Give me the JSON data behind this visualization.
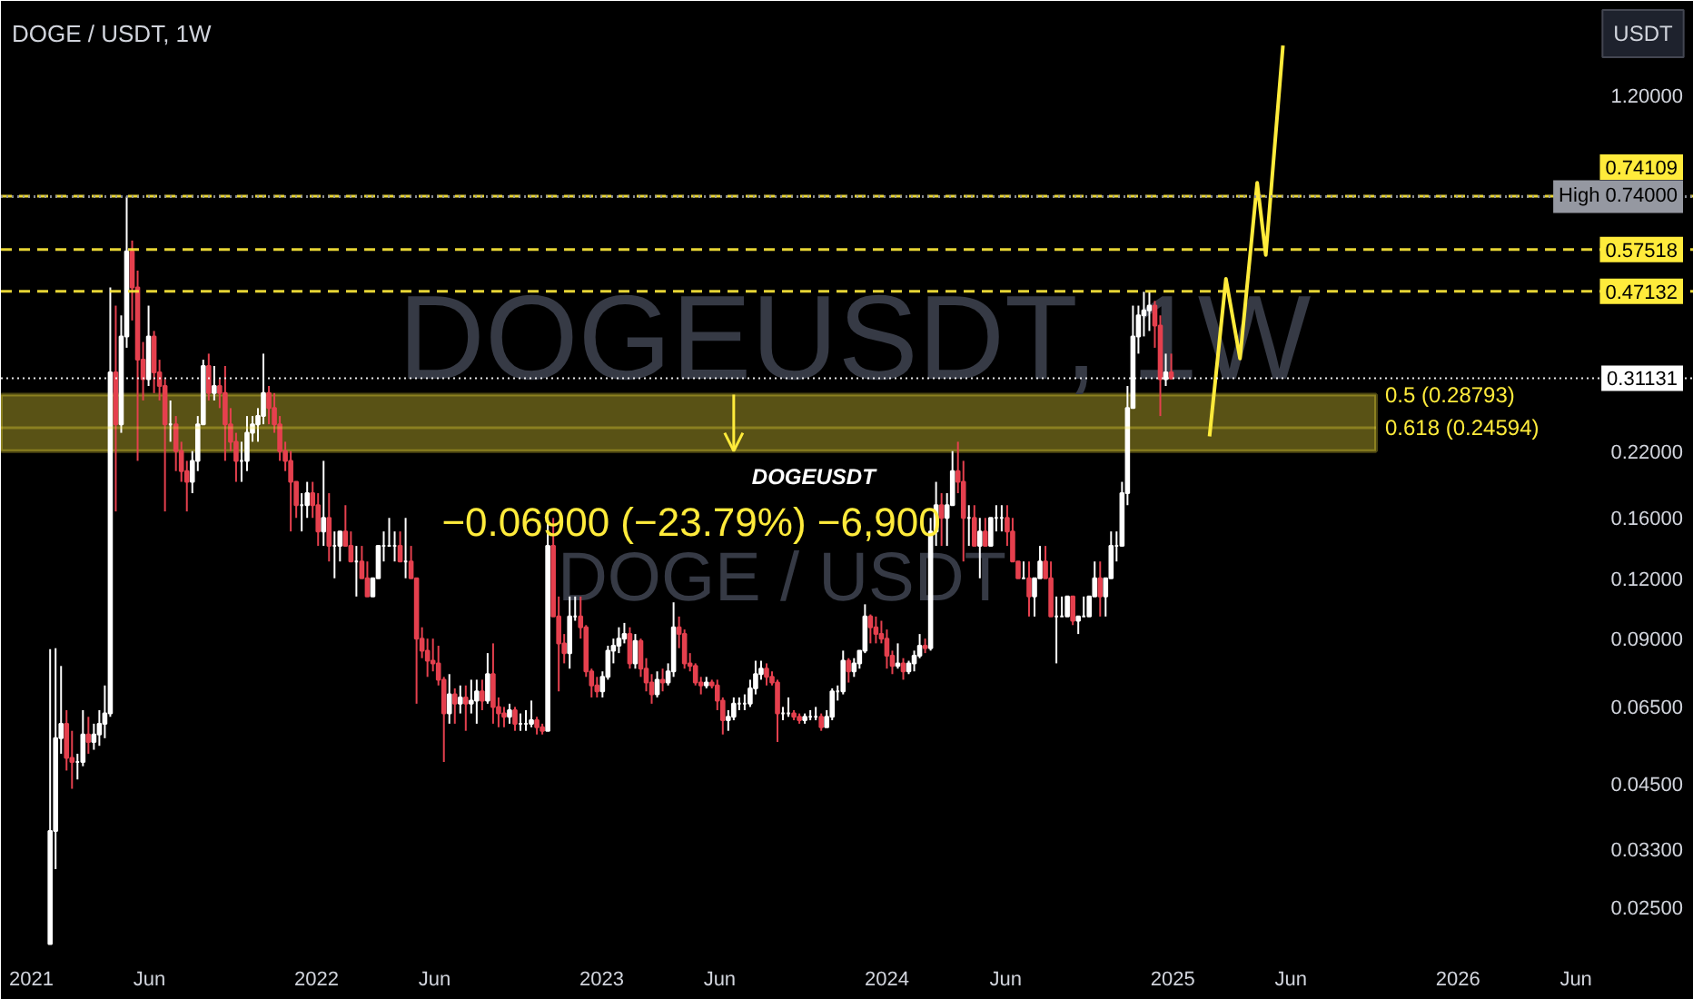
{
  "chart_data": {
    "type": "candlestick",
    "title": "DOGE / USDT, 1W",
    "ylabel": "USDT",
    "log": "y",
    "grid": false,
    "xlim": [
      "2020-11-23",
      "2026-10-30"
    ],
    "xticks": [
      {
        "value": "2021-01-01",
        "label": "2021"
      },
      {
        "value": "2021-06-01",
        "label": "Jun"
      },
      {
        "value": "2022-01-01",
        "label": "2022"
      },
      {
        "value": "2022-06-01",
        "label": "Jun"
      },
      {
        "value": "2023-01-01",
        "label": "2023"
      },
      {
        "value": "2023-06-01",
        "label": "Jun"
      },
      {
        "value": "2024-01-01",
        "label": "2024"
      },
      {
        "value": "2024-06-01",
        "label": "Jun"
      },
      {
        "value": "2025-01-01",
        "label": "2025"
      },
      {
        "value": "2025-06-01",
        "label": "Jun"
      },
      {
        "value": "2026-01-01",
        "label": "2026"
      },
      {
        "value": "2026-06-01",
        "label": "Jun"
      }
    ],
    "ylim": [
      0.0205,
      1.88
    ],
    "yticks": [
      {
        "value": 1.2,
        "label": "1.20000"
      },
      {
        "value": 0.22,
        "label": "0.22000"
      },
      {
        "value": 0.16,
        "label": "0.16000"
      },
      {
        "value": 0.12,
        "label": "0.12000"
      },
      {
        "value": 0.09,
        "label": "0.09000"
      },
      {
        "value": 0.065,
        "label": "0.06500"
      },
      {
        "value": 0.045,
        "label": "0.04500"
      },
      {
        "value": 0.033,
        "label": "0.03300"
      },
      {
        "value": 0.025,
        "label": "0.02500"
      }
    ],
    "x": [
      "2021-01-25",
      "2021-02-01",
      "2021-02-08",
      "2021-02-15",
      "2021-02-22",
      "2021-03-01",
      "2021-03-08",
      "2021-03-15",
      "2021-03-22",
      "2021-03-29",
      "2021-04-05",
      "2021-04-12",
      "2021-04-19",
      "2021-04-26",
      "2021-05-03",
      "2021-05-10",
      "2021-05-17",
      "2021-05-24",
      "2021-05-31",
      "2021-06-07",
      "2021-06-14",
      "2021-06-21",
      "2021-06-28",
      "2021-07-05",
      "2021-07-12",
      "2021-07-19",
      "2021-07-26",
      "2021-08-02",
      "2021-08-09",
      "2021-08-16",
      "2021-08-23",
      "2021-08-30",
      "2021-09-06",
      "2021-09-13",
      "2021-09-20",
      "2021-09-27",
      "2021-10-04",
      "2021-10-11",
      "2021-10-18",
      "2021-10-25",
      "2021-11-01",
      "2021-11-08",
      "2021-11-15",
      "2021-11-22",
      "2021-11-29",
      "2021-12-06",
      "2021-12-13",
      "2021-12-20",
      "2021-12-27",
      "2022-01-03",
      "2022-01-10",
      "2022-01-17",
      "2022-01-24",
      "2022-01-31",
      "2022-02-07",
      "2022-02-14",
      "2022-02-21",
      "2022-02-28",
      "2022-03-07",
      "2022-03-14",
      "2022-03-21",
      "2022-03-28",
      "2022-04-04",
      "2022-04-11",
      "2022-04-18",
      "2022-04-25",
      "2022-05-02",
      "2022-05-09",
      "2022-05-16",
      "2022-05-23",
      "2022-05-30",
      "2022-06-06",
      "2022-06-13",
      "2022-06-20",
      "2022-06-27",
      "2022-07-04",
      "2022-07-11",
      "2022-07-18",
      "2022-07-25",
      "2022-08-01",
      "2022-08-08",
      "2022-08-15",
      "2022-08-22",
      "2022-08-29",
      "2022-09-05",
      "2022-09-12",
      "2022-09-19",
      "2022-09-26",
      "2022-10-03",
      "2022-10-10",
      "2022-10-17",
      "2022-10-24",
      "2022-10-31",
      "2022-11-07",
      "2022-11-14",
      "2022-11-21",
      "2022-11-28",
      "2022-12-05",
      "2022-12-12",
      "2022-12-19",
      "2022-12-26",
      "2023-01-02",
      "2023-01-09",
      "2023-01-16",
      "2023-01-23",
      "2023-01-30",
      "2023-02-06",
      "2023-02-13",
      "2023-02-20",
      "2023-02-27",
      "2023-03-06",
      "2023-03-13",
      "2023-03-20",
      "2023-03-27",
      "2023-04-03",
      "2023-04-10",
      "2023-04-17",
      "2023-04-24",
      "2023-05-01",
      "2023-05-08",
      "2023-05-15",
      "2023-05-22",
      "2023-05-29",
      "2023-06-05",
      "2023-06-12",
      "2023-06-19",
      "2023-06-26",
      "2023-07-03",
      "2023-07-10",
      "2023-07-17",
      "2023-07-24",
      "2023-07-31",
      "2023-08-07",
      "2023-08-14",
      "2023-08-21",
      "2023-08-28",
      "2023-09-04",
      "2023-09-11",
      "2023-09-18",
      "2023-09-25",
      "2023-10-02",
      "2023-10-09",
      "2023-10-16",
      "2023-10-23",
      "2023-10-30",
      "2023-11-06",
      "2023-11-13",
      "2023-11-20",
      "2023-11-27",
      "2023-12-04",
      "2023-12-11",
      "2023-12-18",
      "2023-12-25",
      "2024-01-01",
      "2024-01-08",
      "2024-01-15",
      "2024-01-22",
      "2024-01-29",
      "2024-02-05",
      "2024-02-12",
      "2024-02-19",
      "2024-02-26",
      "2024-03-04",
      "2024-03-11",
      "2024-03-18",
      "2024-03-25",
      "2024-04-01",
      "2024-04-08",
      "2024-04-15",
      "2024-04-22",
      "2024-04-29",
      "2024-05-06",
      "2024-05-13",
      "2024-05-20",
      "2024-05-27",
      "2024-06-03",
      "2024-06-10",
      "2024-06-17",
      "2024-06-24",
      "2024-07-01",
      "2024-07-08",
      "2024-07-15",
      "2024-07-22",
      "2024-07-29",
      "2024-08-05",
      "2024-08-12",
      "2024-08-19",
      "2024-08-26",
      "2024-09-02",
      "2024-09-09",
      "2024-09-16",
      "2024-09-23",
      "2024-09-30",
      "2024-10-07",
      "2024-10-14",
      "2024-10-21",
      "2024-10-28",
      "2024-11-04",
      "2024-11-11",
      "2024-11-18",
      "2024-11-25",
      "2024-12-02",
      "2024-12-09",
      "2024-12-16",
      "2024-12-23",
      "2024-12-30"
    ],
    "ohlc": [
      [
        0.021,
        0.0856,
        0.021,
        0.036
      ],
      [
        0.036,
        0.086,
        0.03,
        0.056
      ],
      [
        0.056,
        0.079,
        0.052,
        0.06
      ],
      [
        0.06,
        0.064,
        0.048,
        0.051
      ],
      [
        0.051,
        0.058,
        0.044,
        0.05
      ],
      [
        0.05,
        0.052,
        0.046,
        0.05
      ],
      [
        0.05,
        0.064,
        0.049,
        0.057
      ],
      [
        0.057,
        0.062,
        0.052,
        0.055
      ],
      [
        0.055,
        0.06,
        0.053,
        0.057
      ],
      [
        0.057,
        0.064,
        0.054,
        0.06
      ],
      [
        0.06,
        0.072,
        0.056,
        0.063
      ],
      [
        0.063,
        0.48,
        0.062,
        0.32
      ],
      [
        0.32,
        0.44,
        0.165,
        0.25
      ],
      [
        0.25,
        0.42,
        0.24,
        0.38
      ],
      [
        0.38,
        0.74,
        0.36,
        0.57
      ],
      [
        0.57,
        0.6,
        0.41,
        0.48
      ],
      [
        0.48,
        0.52,
        0.21,
        0.34
      ],
      [
        0.34,
        0.37,
        0.28,
        0.31
      ],
      [
        0.31,
        0.44,
        0.3,
        0.38
      ],
      [
        0.38,
        0.39,
        0.29,
        0.32
      ],
      [
        0.32,
        0.34,
        0.28,
        0.3
      ],
      [
        0.3,
        0.31,
        0.165,
        0.25
      ],
      [
        0.25,
        0.28,
        0.23,
        0.25
      ],
      [
        0.25,
        0.26,
        0.2,
        0.22
      ],
      [
        0.22,
        0.23,
        0.19,
        0.2
      ],
      [
        0.2,
        0.21,
        0.165,
        0.19
      ],
      [
        0.19,
        0.22,
        0.18,
        0.21
      ],
      [
        0.21,
        0.26,
        0.2,
        0.25
      ],
      [
        0.25,
        0.34,
        0.25,
        0.33
      ],
      [
        0.33,
        0.35,
        0.28,
        0.29
      ],
      [
        0.29,
        0.33,
        0.28,
        0.3
      ],
      [
        0.3,
        0.31,
        0.27,
        0.29
      ],
      [
        0.29,
        0.33,
        0.21,
        0.25
      ],
      [
        0.25,
        0.27,
        0.22,
        0.23
      ],
      [
        0.23,
        0.24,
        0.19,
        0.21
      ],
      [
        0.21,
        0.23,
        0.19,
        0.21
      ],
      [
        0.21,
        0.26,
        0.2,
        0.24
      ],
      [
        0.24,
        0.26,
        0.23,
        0.25
      ],
      [
        0.25,
        0.27,
        0.23,
        0.26
      ],
      [
        0.26,
        0.35,
        0.25,
        0.29
      ],
      [
        0.29,
        0.3,
        0.25,
        0.27
      ],
      [
        0.27,
        0.29,
        0.24,
        0.25
      ],
      [
        0.25,
        0.26,
        0.21,
        0.22
      ],
      [
        0.22,
        0.23,
        0.2,
        0.21
      ],
      [
        0.21,
        0.22,
        0.15,
        0.19
      ],
      [
        0.19,
        0.19,
        0.16,
        0.17
      ],
      [
        0.17,
        0.18,
        0.15,
        0.17
      ],
      [
        0.17,
        0.19,
        0.16,
        0.18
      ],
      [
        0.18,
        0.19,
        0.16,
        0.17
      ],
      [
        0.17,
        0.18,
        0.14,
        0.15
      ],
      [
        0.15,
        0.21,
        0.14,
        0.16
      ],
      [
        0.16,
        0.18,
        0.13,
        0.14
      ],
      [
        0.14,
        0.15,
        0.12,
        0.14
      ],
      [
        0.14,
        0.15,
        0.13,
        0.15
      ],
      [
        0.15,
        0.17,
        0.14,
        0.14
      ],
      [
        0.14,
        0.15,
        0.13,
        0.13
      ],
      [
        0.13,
        0.14,
        0.11,
        0.13
      ],
      [
        0.13,
        0.14,
        0.12,
        0.12
      ],
      [
        0.12,
        0.13,
        0.11,
        0.11
      ],
      [
        0.11,
        0.12,
        0.11,
        0.12
      ],
      [
        0.12,
        0.14,
        0.12,
        0.14
      ],
      [
        0.14,
        0.15,
        0.13,
        0.14
      ],
      [
        0.14,
        0.16,
        0.14,
        0.14
      ],
      [
        0.14,
        0.15,
        0.13,
        0.14
      ],
      [
        0.14,
        0.15,
        0.13,
        0.13
      ],
      [
        0.13,
        0.16,
        0.12,
        0.13
      ],
      [
        0.13,
        0.14,
        0.12,
        0.12
      ],
      [
        0.12,
        0.12,
        0.066,
        0.09
      ],
      [
        0.09,
        0.095,
        0.082,
        0.085
      ],
      [
        0.085,
        0.09,
        0.075,
        0.081
      ],
      [
        0.081,
        0.09,
        0.077,
        0.08
      ],
      [
        0.08,
        0.087,
        0.072,
        0.074
      ],
      [
        0.074,
        0.075,
        0.05,
        0.063
      ],
      [
        0.063,
        0.076,
        0.06,
        0.069
      ],
      [
        0.069,
        0.071,
        0.06,
        0.066
      ],
      [
        0.066,
        0.072,
        0.063,
        0.068
      ],
      [
        0.068,
        0.072,
        0.058,
        0.066
      ],
      [
        0.066,
        0.074,
        0.063,
        0.067
      ],
      [
        0.067,
        0.074,
        0.06,
        0.07
      ],
      [
        0.07,
        0.074,
        0.064,
        0.067
      ],
      [
        0.067,
        0.084,
        0.066,
        0.076
      ],
      [
        0.076,
        0.088,
        0.06,
        0.065
      ],
      [
        0.065,
        0.068,
        0.059,
        0.063
      ],
      [
        0.063,
        0.065,
        0.059,
        0.062
      ],
      [
        0.062,
        0.066,
        0.06,
        0.064
      ],
      [
        0.064,
        0.065,
        0.058,
        0.06
      ],
      [
        0.06,
        0.063,
        0.058,
        0.06
      ],
      [
        0.06,
        0.064,
        0.058,
        0.06
      ],
      [
        0.06,
        0.067,
        0.059,
        0.061
      ],
      [
        0.061,
        0.062,
        0.057,
        0.059
      ],
      [
        0.059,
        0.06,
        0.057,
        0.058
      ],
      [
        0.058,
        0.16,
        0.058,
        0.14
      ],
      [
        0.14,
        0.16,
        0.1,
        0.1
      ],
      [
        0.1,
        0.11,
        0.07,
        0.088
      ],
      [
        0.088,
        0.092,
        0.08,
        0.084
      ],
      [
        0.084,
        0.11,
        0.078,
        0.1
      ],
      [
        0.1,
        0.11,
        0.098,
        0.1
      ],
      [
        0.1,
        0.11,
        0.09,
        0.095
      ],
      [
        0.095,
        0.096,
        0.075,
        0.077
      ],
      [
        0.077,
        0.078,
        0.068,
        0.072
      ],
      [
        0.072,
        0.075,
        0.068,
        0.07
      ],
      [
        0.07,
        0.077,
        0.068,
        0.075
      ],
      [
        0.075,
        0.087,
        0.074,
        0.085
      ],
      [
        0.085,
        0.09,
        0.08,
        0.087
      ],
      [
        0.087,
        0.095,
        0.084,
        0.09
      ],
      [
        0.09,
        0.097,
        0.088,
        0.092
      ],
      [
        0.092,
        0.095,
        0.078,
        0.08
      ],
      [
        0.08,
        0.092,
        0.078,
        0.089
      ],
      [
        0.089,
        0.09,
        0.075,
        0.078
      ],
      [
        0.078,
        0.082,
        0.07,
        0.073
      ],
      [
        0.073,
        0.076,
        0.066,
        0.069
      ],
      [
        0.069,
        0.077,
        0.068,
        0.074
      ],
      [
        0.074,
        0.078,
        0.07,
        0.073
      ],
      [
        0.073,
        0.08,
        0.072,
        0.077
      ],
      [
        0.077,
        0.107,
        0.075,
        0.095
      ],
      [
        0.095,
        0.1,
        0.086,
        0.092
      ],
      [
        0.092,
        0.094,
        0.078,
        0.08
      ],
      [
        0.08,
        0.084,
        0.077,
        0.079
      ],
      [
        0.079,
        0.08,
        0.072,
        0.073
      ],
      [
        0.073,
        0.075,
        0.069,
        0.072
      ],
      [
        0.072,
        0.075,
        0.071,
        0.073
      ],
      [
        0.073,
        0.074,
        0.071,
        0.072
      ],
      [
        0.072,
        0.074,
        0.064,
        0.067
      ],
      [
        0.067,
        0.068,
        0.057,
        0.061
      ],
      [
        0.061,
        0.064,
        0.058,
        0.062
      ],
      [
        0.062,
        0.068,
        0.061,
        0.066
      ],
      [
        0.066,
        0.068,
        0.064,
        0.066
      ],
      [
        0.066,
        0.069,
        0.064,
        0.066
      ],
      [
        0.066,
        0.074,
        0.065,
        0.071
      ],
      [
        0.071,
        0.081,
        0.069,
        0.076
      ],
      [
        0.076,
        0.081,
        0.074,
        0.078
      ],
      [
        0.078,
        0.08,
        0.072,
        0.075
      ],
      [
        0.075,
        0.077,
        0.072,
        0.073
      ],
      [
        0.073,
        0.074,
        0.055,
        0.063
      ],
      [
        0.063,
        0.065,
        0.061,
        0.063
      ],
      [
        0.063,
        0.068,
        0.062,
        0.063
      ],
      [
        0.063,
        0.064,
        0.061,
        0.062
      ],
      [
        0.062,
        0.063,
        0.06,
        0.061
      ],
      [
        0.061,
        0.063,
        0.06,
        0.062
      ],
      [
        0.062,
        0.064,
        0.061,
        0.062
      ],
      [
        0.062,
        0.065,
        0.061,
        0.062
      ],
      [
        0.062,
        0.063,
        0.058,
        0.059
      ],
      [
        0.059,
        0.064,
        0.059,
        0.062
      ],
      [
        0.062,
        0.071,
        0.061,
        0.07
      ],
      [
        0.07,
        0.072,
        0.067,
        0.07
      ],
      [
        0.07,
        0.085,
        0.069,
        0.081
      ],
      [
        0.081,
        0.082,
        0.073,
        0.077
      ],
      [
        0.077,
        0.082,
        0.075,
        0.08
      ],
      [
        0.08,
        0.085,
        0.078,
        0.085
      ],
      [
        0.085,
        0.106,
        0.084,
        0.1
      ],
      [
        0.1,
        0.101,
        0.088,
        0.095
      ],
      [
        0.095,
        0.1,
        0.088,
        0.092
      ],
      [
        0.092,
        0.098,
        0.088,
        0.09
      ],
      [
        0.09,
        0.094,
        0.078,
        0.083
      ],
      [
        0.083,
        0.085,
        0.076,
        0.079
      ],
      [
        0.079,
        0.088,
        0.078,
        0.08
      ],
      [
        0.08,
        0.082,
        0.074,
        0.077
      ],
      [
        0.077,
        0.081,
        0.076,
        0.08
      ],
      [
        0.08,
        0.085,
        0.077,
        0.083
      ],
      [
        0.083,
        0.092,
        0.082,
        0.087
      ],
      [
        0.087,
        0.09,
        0.084,
        0.086
      ],
      [
        0.086,
        0.16,
        0.085,
        0.15
      ],
      [
        0.15,
        0.19,
        0.14,
        0.17
      ],
      [
        0.17,
        0.18,
        0.14,
        0.16
      ],
      [
        0.16,
        0.18,
        0.14,
        0.17
      ],
      [
        0.17,
        0.22,
        0.17,
        0.2
      ],
      [
        0.2,
        0.23,
        0.18,
        0.19
      ],
      [
        0.19,
        0.21,
        0.13,
        0.16
      ],
      [
        0.16,
        0.17,
        0.14,
        0.16
      ],
      [
        0.16,
        0.17,
        0.14,
        0.14
      ],
      [
        0.14,
        0.16,
        0.12,
        0.15
      ],
      [
        0.15,
        0.16,
        0.14,
        0.14
      ],
      [
        0.14,
        0.16,
        0.14,
        0.16
      ],
      [
        0.16,
        0.17,
        0.15,
        0.16
      ],
      [
        0.16,
        0.17,
        0.15,
        0.16
      ],
      [
        0.16,
        0.17,
        0.14,
        0.15
      ],
      [
        0.15,
        0.16,
        0.13,
        0.13
      ],
      [
        0.13,
        0.13,
        0.12,
        0.12
      ],
      [
        0.12,
        0.13,
        0.12,
        0.12
      ],
      [
        0.12,
        0.13,
        0.1,
        0.11
      ],
      [
        0.11,
        0.12,
        0.1,
        0.12
      ],
      [
        0.12,
        0.14,
        0.12,
        0.13
      ],
      [
        0.13,
        0.14,
        0.12,
        0.12
      ],
      [
        0.12,
        0.13,
        0.1,
        0.1
      ],
      [
        0.1,
        0.11,
        0.08,
        0.1
      ],
      [
        0.1,
        0.11,
        0.1,
        0.1
      ],
      [
        0.1,
        0.11,
        0.1,
        0.11
      ],
      [
        0.11,
        0.11,
        0.096,
        0.098
      ],
      [
        0.098,
        0.1,
        0.092,
        0.1
      ],
      [
        0.1,
        0.11,
        0.1,
        0.1
      ],
      [
        0.1,
        0.11,
        0.1,
        0.11
      ],
      [
        0.11,
        0.13,
        0.11,
        0.12
      ],
      [
        0.12,
        0.13,
        0.1,
        0.11
      ],
      [
        0.11,
        0.12,
        0.1,
        0.12
      ],
      [
        0.12,
        0.15,
        0.12,
        0.14
      ],
      [
        0.14,
        0.15,
        0.13,
        0.14
      ],
      [
        0.14,
        0.19,
        0.14,
        0.18
      ],
      [
        0.18,
        0.3,
        0.17,
        0.27
      ],
      [
        0.27,
        0.44,
        0.27,
        0.38
      ],
      [
        0.38,
        0.44,
        0.35,
        0.42
      ],
      [
        0.42,
        0.47,
        0.38,
        0.43
      ],
      [
        0.43,
        0.47,
        0.39,
        0.44
      ],
      [
        0.44,
        0.45,
        0.36,
        0.4
      ],
      [
        0.4,
        0.42,
        0.26,
        0.31
      ],
      [
        0.31,
        0.35,
        0.3,
        0.32
      ],
      [
        0.32,
        0.35,
        0.31,
        0.311
      ]
    ],
    "series": [
      {
        "type": "line",
        "color": "#ffeb3b",
        "x": [
          "2025-02-17",
          "2025-03-10",
          "2025-03-28",
          "2025-04-19",
          "2025-04-30",
          "2025-05-22"
        ],
        "values": [
          0.236,
          0.5,
          0.342,
          0.79,
          0.56,
          1.52
        ]
      }
    ],
    "ref_lines": [
      {
        "axis": "y",
        "value": 0.74109,
        "label": "0.74109",
        "color": "#ffeb3b",
        "line_style": "dashed"
      },
      {
        "axis": "y",
        "value": 0.74,
        "label": "High 0.74000",
        "color": "#9598a1",
        "line_style": "dotted"
      },
      {
        "axis": "y",
        "value": 0.57518,
        "label": "0.57518",
        "color": "#ffeb3b",
        "line_style": "dashed"
      },
      {
        "axis": "y",
        "value": 0.47132,
        "label": "0.47132",
        "color": "#ffeb3b",
        "line_style": "dashed"
      },
      {
        "axis": "y",
        "value": 0.31131,
        "label": "0.31131",
        "color": "#ffffff",
        "line_style": "dotted"
      },
      {
        "axis": "y",
        "value": 0.24594,
        "label": "0.618 (0.24594)",
        "color": "#ffeb3b",
        "line_style": "solid"
      }
    ],
    "bands": [
      {
        "axis": "y",
        "from": 0.22,
        "to": 0.28793,
        "label": "0.5 (0.28793)",
        "color": "#ffeb3b"
      }
    ],
    "annotations": [
      "DOGEUSDT, 1W",
      "DOGE / USDT",
      {
        "text": "DOGEUSDT",
        "x": "2023-06-19",
        "y": 0.22
      },
      "−0.06900 (−23.79%) −6,900"
    ]
  }
}
